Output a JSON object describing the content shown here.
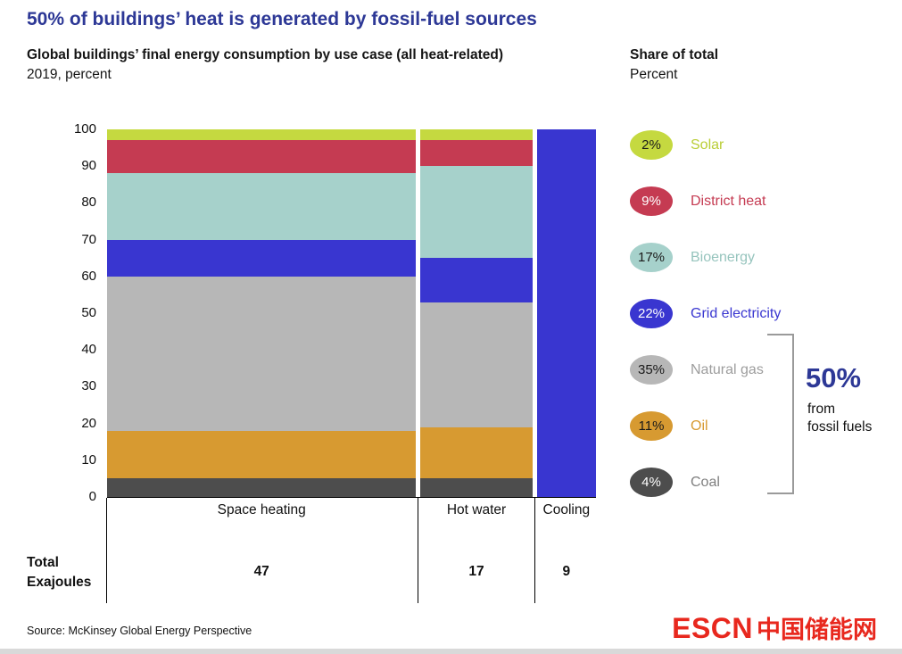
{
  "header": {
    "title": "50% of buildings’ heat is generated by fossil-fuel sources",
    "subtitle": "Global buildings’ final energy consumption by use case (all heat-related)",
    "subtitle_line2": "2019, percent"
  },
  "legend": {
    "header": "Share of total",
    "subheader": "Percent",
    "items": [
      {
        "share": "2%",
        "label": "Solar",
        "color": "#c5d940",
        "text_color": "#1a1a1a",
        "label_color": "#bace37"
      },
      {
        "share": "9%",
        "label": "District heat",
        "color": "#c53b52",
        "text_color": "#ffffff",
        "label_color": "#c53b52"
      },
      {
        "share": "17%",
        "label": "Bioenergy",
        "color": "#a6d1cb",
        "text_color": "#1a1a1a",
        "label_color": "#96c4bd"
      },
      {
        "share": "22%",
        "label": "Grid electricity",
        "color": "#3936d0",
        "text_color": "#ffffff",
        "label_color": "#3936d0"
      },
      {
        "share": "35%",
        "label": "Natural gas",
        "color": "#b7b7b7",
        "text_color": "#1a1a1a",
        "label_color": "#9d9d9d"
      },
      {
        "share": "11%",
        "label": "Oil",
        "color": "#d79a31",
        "text_color": "#1a1a1a",
        "label_color": "#d79a31"
      },
      {
        "share": "4%",
        "label": "Coal",
        "color": "#4d4d4d",
        "text_color": "#ffffff",
        "label_color": "#7f7f7f"
      }
    ]
  },
  "annotation": {
    "value": "50%",
    "line1": "from",
    "line2": "fossil fuels"
  },
  "chart_data": {
    "type": "bar",
    "variant": "stacked-variable-width",
    "title": "50% of buildings’ heat is generated by fossil-fuel sources",
    "unit": "percent",
    "ylim": [
      0,
      100
    ],
    "yticks": [
      0,
      10,
      20,
      30,
      40,
      50,
      60,
      70,
      80,
      90,
      100
    ],
    "categories": [
      "Space heating",
      "Hot water",
      "Cooling"
    ],
    "column_totals_exajoules": [
      47,
      17,
      9
    ],
    "totals_row": {
      "label_line1": "Total",
      "label_line2": "Exajoules",
      "values": [
        "47",
        "17",
        "9"
      ]
    },
    "stack_order": "bottom-to-top",
    "series": [
      {
        "name": "Coal",
        "color": "#4d4d4d",
        "values": [
          5,
          5,
          0
        ],
        "share_of_total": "4%"
      },
      {
        "name": "Oil",
        "color": "#d79a31",
        "values": [
          13,
          14,
          0
        ],
        "share_of_total": "11%"
      },
      {
        "name": "Natural gas",
        "color": "#b7b7b7",
        "values": [
          42,
          34,
          0
        ],
        "share_of_total": "35%"
      },
      {
        "name": "Grid electricity",
        "color": "#3936d0",
        "values": [
          10,
          12,
          100
        ],
        "share_of_total": "22%"
      },
      {
        "name": "Bioenergy",
        "color": "#a6d1cb",
        "values": [
          18,
          25,
          0
        ],
        "share_of_total": "17%"
      },
      {
        "name": "District heat",
        "color": "#c53b52",
        "values": [
          9,
          7,
          0
        ],
        "share_of_total": "9%"
      },
      {
        "name": "Solar",
        "color": "#c5d940",
        "values": [
          3,
          3,
          0
        ],
        "share_of_total": "2%"
      }
    ]
  },
  "footer": {
    "source": "Source: McKinsey Global Energy Perspective",
    "logo_text": "ESCN",
    "logo_text_cn": "中国储能网"
  }
}
